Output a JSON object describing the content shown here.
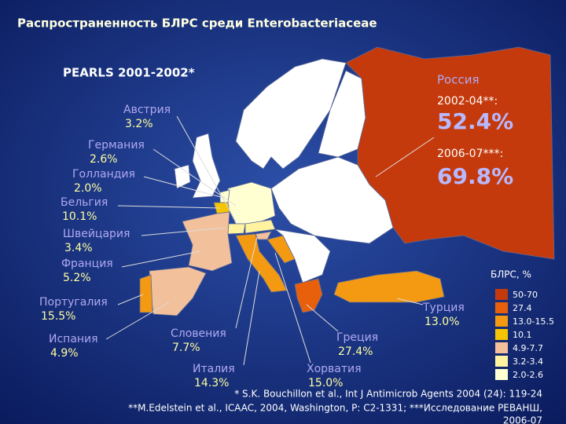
{
  "title": "Распространенность БЛРС среди Enterobacteriaceae",
  "study": "PEARLS 2001-2002*",
  "russia": {
    "name": "Россия",
    "period1": "2002-04**:",
    "value1": "52.4%",
    "period2": "2006-07***:",
    "value2": "69.8%"
  },
  "countries": [
    {
      "name": "Австрия",
      "value": "3.2%"
    },
    {
      "name": "Германия",
      "value": "2.6%"
    },
    {
      "name": "Голландия",
      "value": "2.0%"
    },
    {
      "name": "Бельгия",
      "value": "10.1%"
    },
    {
      "name": "Швейцария",
      "value": "3.4%"
    },
    {
      "name": "Франция",
      "value": "5.2%"
    },
    {
      "name": "Португалия",
      "value": "15.5%"
    },
    {
      "name": "Испания",
      "value": "4.9%"
    },
    {
      "name": "Словения",
      "value": "7.7%"
    },
    {
      "name": "Италия",
      "value": "14.3%"
    },
    {
      "name": "Хорватия",
      "value": "15.0%"
    },
    {
      "name": "Греция",
      "value": "27.4%"
    },
    {
      "name": "Турция",
      "value": "13.0%"
    }
  ],
  "legend": {
    "title": "БЛРС, %",
    "items": [
      {
        "label": "50-70",
        "color": "#c53a0c"
      },
      {
        "label": "27.4",
        "color": "#e8600c"
      },
      {
        "label": "13.0-15.5",
        "color": "#f39a12"
      },
      {
        "label": "10.1",
        "color": "#f6c400"
      },
      {
        "label": "4.9-7.7",
        "color": "#f2c09a"
      },
      {
        "label": "3.2-3.4",
        "color": "#fff3a0"
      },
      {
        "label": "2.0-2.6",
        "color": "#ffffd2"
      }
    ]
  },
  "footnotes": [
    "* S.K. Bouchillon et al., Int J Antimicrob Agents 2004 (24): 119-24",
    "**M.Edelstein et al., ICAAC, 2004, Washington, P: C2-1331;    ***Исследование РЕВАНШ,",
    "2006-07"
  ]
}
